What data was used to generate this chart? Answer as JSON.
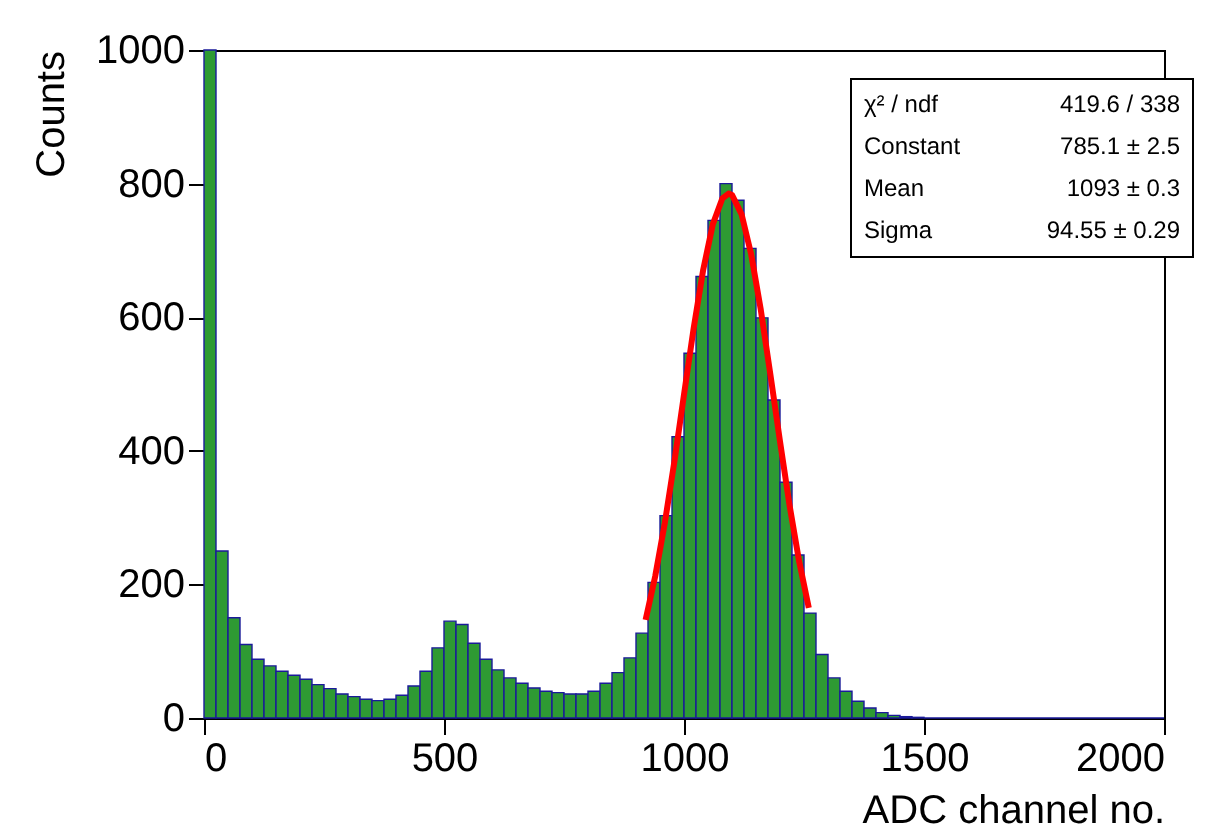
{
  "chart_data": {
    "type": "histogram",
    "xlabel": "ADC channel no.",
    "ylabel": "Counts",
    "bins": [
      0,
      25,
      50,
      75,
      100,
      125,
      150,
      175,
      200,
      225,
      250,
      275,
      300,
      325,
      350,
      375,
      400,
      425,
      450,
      475,
      500,
      525,
      550,
      575,
      600,
      625,
      650,
      675,
      700,
      725,
      750,
      775,
      800,
      825,
      850,
      875,
      900,
      925,
      950,
      975,
      1000,
      1025,
      1050,
      1075,
      1100,
      1125,
      1150,
      1175,
      1200,
      1225,
      1250,
      1275,
      1300,
      1325,
      1350,
      1375,
      1400,
      1425,
      1450,
      1475,
      1500,
      1525,
      1550,
      1575,
      1600,
      1625,
      1650,
      1675,
      1700,
      1725,
      1750,
      1775,
      1800,
      1825,
      1850,
      1875,
      1900,
      1925,
      1950,
      1975,
      2000
    ],
    "values": [
      1000,
      250,
      150,
      110,
      88,
      78,
      70,
      64,
      58,
      50,
      44,
      36,
      32,
      28,
      26,
      28,
      34,
      48,
      70,
      105,
      145,
      140,
      112,
      88,
      72,
      60,
      52,
      45,
      40,
      38,
      36,
      36,
      40,
      52,
      68,
      90,
      127,
      203,
      303,
      421,
      546,
      661,
      745,
      800,
      775,
      703,
      599,
      476,
      353,
      244,
      157,
      95,
      60,
      40,
      25,
      15,
      8,
      4,
      2,
      1,
      0,
      0,
      0,
      0,
      0,
      0,
      0,
      0,
      0,
      0,
      0,
      0,
      0,
      0,
      0,
      0,
      0,
      0,
      0,
      0
    ],
    "color": "#2e9a33",
    "series": [
      {
        "type": "line",
        "color": "#ff0000",
        "x": [
          920,
          940,
          960,
          980,
          1000,
          1020,
          1040,
          1060,
          1080,
          1093,
          1100,
          1120,
          1140,
          1160,
          1180,
          1200,
          1220,
          1240,
          1260
        ],
        "values": [
          147,
          212,
          292,
          384,
          484,
          583,
          671,
          739,
          778,
          785,
          783,
          754,
          694,
          611,
          514,
          414,
          318,
          234,
          165
        ]
      }
    ],
    "xlim": [
      0,
      2000
    ],
    "xticks": [
      0,
      500,
      1000,
      1500,
      2000
    ],
    "ylim": [
      0,
      1000
    ],
    "yticks": [
      0,
      200,
      400,
      600,
      800,
      1000
    ],
    "grid": false,
    "annotations": [
      "χ² / ndf",
      "419.6 / 338",
      "Constant",
      "785.1 ± 2.5",
      "Mean",
      "1093 ± 0.3",
      "Sigma",
      "94.55 ± 0.29"
    ]
  }
}
